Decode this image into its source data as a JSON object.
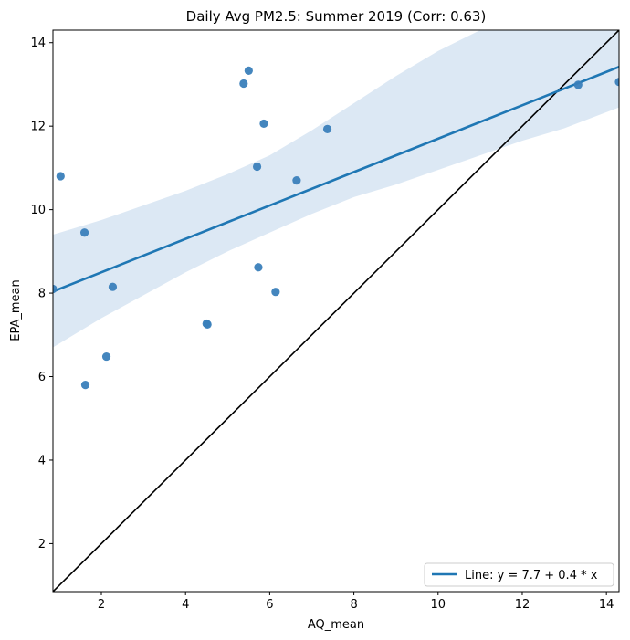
{
  "chart_data": {
    "type": "scatter",
    "title": "Daily Avg PM2.5: Summer 2019 (Corr: 0.63)",
    "xlabel": "AQ_mean",
    "ylabel": "EPA_mean",
    "xlim": [
      0.85,
      14.3
    ],
    "ylim": [
      0.85,
      14.3
    ],
    "xticks": [
      2,
      4,
      6,
      8,
      10,
      12,
      14
    ],
    "yticks": [
      2,
      4,
      6,
      8,
      10,
      12,
      14
    ],
    "points": [
      {
        "x": 0.85,
        "y": 8.1
      },
      {
        "x": 1.03,
        "y": 10.8
      },
      {
        "x": 1.6,
        "y": 9.45
      },
      {
        "x": 1.62,
        "y": 5.8
      },
      {
        "x": 2.12,
        "y": 6.48
      },
      {
        "x": 2.27,
        "y": 8.15
      },
      {
        "x": 4.5,
        "y": 7.27
      },
      {
        "x": 4.52,
        "y": 7.25
      },
      {
        "x": 5.38,
        "y": 13.02
      },
      {
        "x": 5.5,
        "y": 13.33
      },
      {
        "x": 5.7,
        "y": 11.03
      },
      {
        "x": 5.73,
        "y": 8.62
      },
      {
        "x": 5.86,
        "y": 12.06
      },
      {
        "x": 6.14,
        "y": 8.03
      },
      {
        "x": 6.64,
        "y": 10.7
      },
      {
        "x": 7.37,
        "y": 11.93
      },
      {
        "x": 13.33,
        "y": 12.99
      },
      {
        "x": 14.3,
        "y": 13.06
      }
    ],
    "regression": {
      "intercept": 7.7,
      "slope": 0.4,
      "legend_label": "Line: y = 7.7 + 0.4 * x",
      "band": [
        {
          "x": 0.85,
          "lo": 6.7,
          "hi": 9.4
        },
        {
          "x": 2.0,
          "lo": 7.4,
          "hi": 9.75
        },
        {
          "x": 3.0,
          "lo": 7.95,
          "hi": 10.1
        },
        {
          "x": 4.0,
          "lo": 8.5,
          "hi": 10.45
        },
        {
          "x": 5.0,
          "lo": 9.0,
          "hi": 10.85
        },
        {
          "x": 6.0,
          "lo": 9.45,
          "hi": 11.3
        },
        {
          "x": 7.0,
          "lo": 9.9,
          "hi": 11.9
        },
        {
          "x": 8.0,
          "lo": 10.3,
          "hi": 12.55
        },
        {
          "x": 9.0,
          "lo": 10.6,
          "hi": 13.2
        },
        {
          "x": 10.0,
          "lo": 10.95,
          "hi": 13.8
        },
        {
          "x": 11.0,
          "lo": 11.3,
          "hi": 14.3
        },
        {
          "x": 12.0,
          "lo": 11.65,
          "hi": 14.3
        },
        {
          "x": 13.0,
          "lo": 11.95,
          "hi": 14.3
        },
        {
          "x": 14.3,
          "lo": 12.45,
          "hi": 14.3
        }
      ]
    },
    "identity_line": true,
    "legend_position": "lower-right",
    "grid": false,
    "colors": {
      "points": "#3a7fba",
      "line": "#1f77b4",
      "band": "#c9dcee",
      "identity": "#000000"
    }
  }
}
